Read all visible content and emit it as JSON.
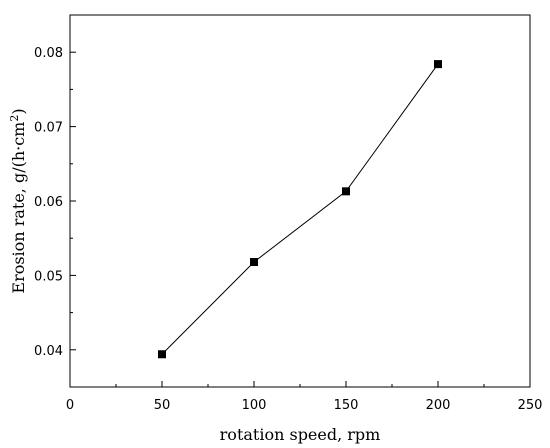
{
  "chart_data": {
    "type": "line",
    "title": "",
    "xlabel": "rotation speed,  rpm",
    "ylabel": {
      "main": "Erosion rate,  g/(h·cm",
      "superscript": "2",
      "close": ")"
    },
    "xlim": [
      0,
      250
    ],
    "ylim": [
      0.035,
      0.085
    ],
    "xticks": [
      0,
      50,
      100,
      150,
      200,
      250
    ],
    "xtick_labels": [
      "0",
      "50",
      "100",
      "150",
      "200",
      "250"
    ],
    "yticks": [
      0.04,
      0.05,
      0.06,
      0.07,
      0.08
    ],
    "ytick_labels": [
      "0.04",
      "0.05",
      "0.06",
      "0.07",
      "0.08"
    ],
    "grid": false,
    "legend": "none",
    "marker": "square",
    "color": "#000000",
    "series": [
      {
        "x": [
          50,
          100,
          150,
          200
        ],
        "y": [
          0.0394,
          0.0518,
          0.0613,
          0.0784
        ]
      }
    ]
  }
}
